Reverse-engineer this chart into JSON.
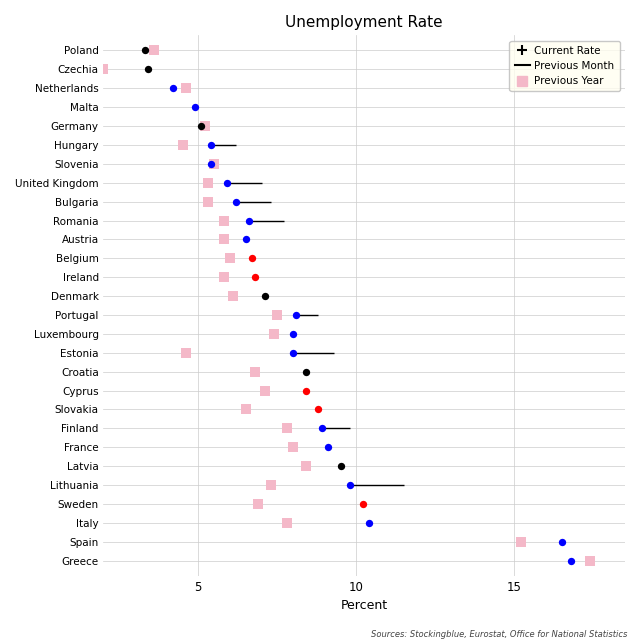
{
  "title": "Unemployment Rate",
  "xlabel": "Percent",
  "source": "Sources: Stockingblue, Eurostat, Office for National Statistics",
  "countries": [
    "Poland",
    "Czechia",
    "Netherlands",
    "Malta",
    "Germany",
    "Hungary",
    "Slovenia",
    "United Kingdom",
    "Bulgaria",
    "Romania",
    "Austria",
    "Belgium",
    "Ireland",
    "Denmark",
    "Portugal",
    "Luxembourg",
    "Estonia",
    "Croatia",
    "Cyprus",
    "Slovakia",
    "Finland",
    "France",
    "Latvia",
    "Lithuania",
    "Sweden",
    "Italy",
    "Spain",
    "Greece"
  ],
  "current_rate": [
    3.3,
    3.4,
    4.2,
    4.9,
    5.1,
    5.4,
    5.4,
    5.9,
    6.2,
    6.6,
    6.5,
    6.7,
    6.8,
    7.1,
    8.1,
    8.0,
    8.0,
    8.4,
    8.4,
    8.8,
    8.9,
    9.1,
    9.5,
    9.8,
    10.2,
    10.4,
    16.5,
    16.8
  ],
  "prev_month_end": [
    null,
    null,
    null,
    null,
    null,
    6.2,
    null,
    7.0,
    7.3,
    7.7,
    null,
    null,
    null,
    null,
    8.8,
    null,
    9.3,
    null,
    null,
    null,
    9.8,
    null,
    null,
    11.5,
    null,
    null,
    null,
    null
  ],
  "current_color": [
    "black",
    "black",
    "blue",
    "blue",
    "black",
    "blue",
    "blue",
    "blue",
    "blue",
    "blue",
    "blue",
    "red",
    "red",
    "black",
    "blue",
    "blue",
    "blue",
    "black",
    "red",
    "red",
    "blue",
    "blue",
    "black",
    "blue",
    "red",
    "blue",
    "blue",
    "blue"
  ],
  "prev_year": [
    3.6,
    2.0,
    4.6,
    null,
    5.2,
    4.5,
    5.5,
    5.3,
    5.3,
    5.8,
    5.8,
    6.0,
    5.8,
    6.1,
    7.5,
    7.4,
    4.6,
    6.8,
    7.1,
    6.5,
    7.8,
    8.0,
    8.4,
    7.3,
    6.9,
    7.8,
    15.2,
    17.4
  ],
  "prev_year_color": "#f4b8c8",
  "xlim_left": 2.0,
  "xlim_right": 18.5,
  "xticks": [
    5,
    10,
    15
  ],
  "xtick_labels": [
    "5",
    "10",
    "15"
  ],
  "bg_color": "#f5f5f5",
  "legend_bg": "#fffef0"
}
